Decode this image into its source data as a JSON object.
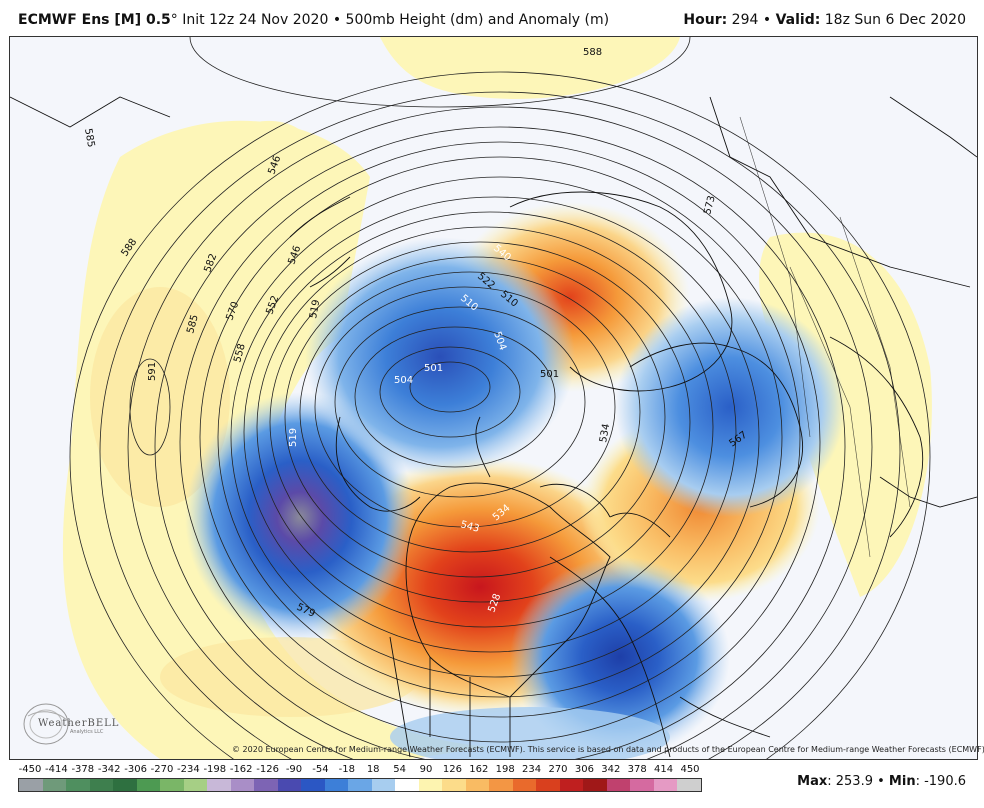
{
  "header": {
    "model": "ECMWF Ens [M] 0.5",
    "degree": "°",
    "init": "Init 12z 24 Nov 2020",
    "bullet": "•",
    "product": "500mb Height (dm) and Anomaly (m)",
    "hour_label": "Hour:",
    "hour_value": "294",
    "valid_label": "Valid:",
    "valid_value": "18z Sun 6 Dec 2020"
  },
  "map": {
    "contour_labels": [
      "588",
      "585",
      "588",
      "582",
      "570",
      "585",
      "558",
      "591",
      "546",
      "546",
      "552",
      "534",
      "519",
      "510",
      "540",
      "522",
      "510",
      "504",
      "501",
      "504",
      "501",
      "543",
      "534",
      "528",
      "567",
      "573",
      "579",
      "519"
    ],
    "colors": {
      "ocean": "#f4f6fb",
      "warm_light": "#fdf6b8",
      "warm_mid": "#fbd58a",
      "warm_orange": "#f59a3a",
      "warm_red": "#e2421b",
      "warm_deep": "#c8161d",
      "cold_light": "#a8cdf0",
      "cold_mid": "#5b9be3",
      "cold_deep": "#2a5fc7",
      "cold_purple": "#5b4aa8",
      "contour": "#222222",
      "coast": "#111111"
    }
  },
  "copyright": "© 2020 European Centre for Medium-range Weather Forecasts (ECMWF). This service is based on data and products of the European Centre for Medium-range Weather Forecasts (ECMWF).",
  "logo": {
    "name": "WeatherBELL",
    "sub": "Analytics LLC"
  },
  "colorbar": {
    "ticks": [
      "-450",
      "-414",
      "-378",
      "-342",
      "-306",
      "-270",
      "-234",
      "-198",
      "-162",
      "-126",
      "-90",
      "-54",
      "-18",
      "18",
      "54",
      "90",
      "126",
      "162",
      "198",
      "234",
      "270",
      "306",
      "342",
      "378",
      "414",
      "450"
    ],
    "colors": [
      "#9aa0a6",
      "#6f9a7a",
      "#4f8f5f",
      "#3e7f4e",
      "#2e7040",
      "#4d9a52",
      "#7ab667",
      "#a6cf85",
      "#c8b8d8",
      "#a98ec7",
      "#7d64b4",
      "#4a4ab0",
      "#2b57c4",
      "#3d7fd8",
      "#6aa6e6",
      "#a7cdef",
      "#ffffff",
      "#fdf4b0",
      "#fcdc8a",
      "#f9bb63",
      "#f39644",
      "#e96a2c",
      "#d9401e",
      "#bf1f1f",
      "#a01818",
      "#c0416e",
      "#d56aa0",
      "#e59ac4",
      "#cfcfcf"
    ]
  },
  "stats": {
    "max_label": "Max",
    "max_value": ": 253.9 • ",
    "min_label": "Min",
    "min_value": ": -190.6"
  }
}
